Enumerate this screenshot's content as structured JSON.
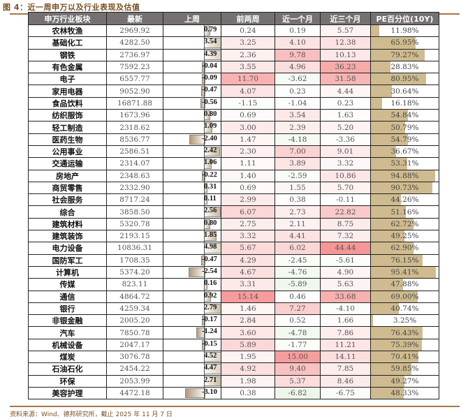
{
  "title": "图 4：近一周申万以及行业表现及估值",
  "footer": "资料来源：Wind、德邦研究所，截止 2025 年 11 月 7 日",
  "colors": {
    "header_bg": "#767171",
    "accent_rule": "#a5774e",
    "pe_bar": "#cfbb8f",
    "heat_red": "#f4a6a6",
    "heat_green": "#e2efda"
  },
  "table": {
    "headers": [
      "申万行业板块",
      "最新",
      "上周",
      "前两周",
      "近一个月",
      "近三个月",
      "PE百分位(10Y)"
    ],
    "rows": [
      {
        "name": "农林牧渔",
        "latest": "2969.92",
        "last_week": "0.79",
        "prev2": "0.24",
        "m1": "0.19",
        "m3": "5.57",
        "pe": "11.98%"
      },
      {
        "name": "基础化工",
        "latest": "4282.50",
        "last_week": "3.54",
        "prev2": "3.25",
        "m1": "4.10",
        "m3": "12.38",
        "pe": "65.95%"
      },
      {
        "name": "钢铁",
        "latest": "2736.97",
        "last_week": "4.39",
        "prev2": "2.36",
        "m1": "9.78",
        "m3": "10.13",
        "pe": "79.27%"
      },
      {
        "name": "有色金属",
        "latest": "7592.23",
        "last_week": "-0.04",
        "prev2": "3.55",
        "m1": "4.96",
        "m3": "36.23",
        "pe": "28.83%"
      },
      {
        "name": "电子",
        "latest": "6557.77",
        "last_week": "-0.09",
        "prev2": "11.70",
        "m1": "-3.62",
        "m3": "31.58",
        "pe": "80.95%"
      },
      {
        "name": "家用电器",
        "latest": "9052.90",
        "last_week": "-0.47",
        "prev2": "4.07",
        "m1": "0.23",
        "m3": "4.44",
        "pe": "30.64%"
      },
      {
        "name": "食品饮料",
        "latest": "16871.88",
        "last_week": "-0.56",
        "prev2": "-1.15",
        "m1": "-1.04",
        "m3": "0.23",
        "pe": "16.18%"
      },
      {
        "name": "纺织服饰",
        "latest": "1673.96",
        "last_week": "0.80",
        "prev2": "0.69",
        "m1": "3.54",
        "m3": "1.63",
        "pe": "54.84%"
      },
      {
        "name": "轻工制造",
        "latest": "2318.62",
        "last_week": "1.09",
        "prev2": "3.00",
        "m1": "2.39",
        "m3": "5.20",
        "pe": "50.79%"
      },
      {
        "name": "医药生物",
        "latest": "8536.77",
        "last_week": "-2.40",
        "prev2": "1.47",
        "m1": "-4.18",
        "m3": "-3.36",
        "pe": "54.79%"
      },
      {
        "name": "公用事业",
        "latest": "2586.51",
        "last_week": "2.42",
        "prev2": "2.30",
        "m1": "7.00",
        "m3": "9.01",
        "pe": "36.67%"
      },
      {
        "name": "交通运输",
        "latest": "2314.07",
        "last_week": "1.06",
        "prev2": "1.11",
        "m1": "3.89",
        "m3": "3.32",
        "pe": "53.31%"
      },
      {
        "name": "房地产",
        "latest": "2348.63",
        "last_week": "-0.22",
        "prev2": "1.40",
        "m1": "-2.59",
        "m3": "10.86",
        "pe": "94.88%"
      },
      {
        "name": "商贸零售",
        "latest": "2332.90",
        "last_week": "0.31",
        "prev2": "0.69",
        "m1": "1.55",
        "m3": "5.70",
        "pe": "90.73%"
      },
      {
        "name": "社会服务",
        "latest": "8717.24",
        "last_week": "0.11",
        "prev2": "2.99",
        "m1": "0.38",
        "m3": "-0.11",
        "pe": "44.26%"
      },
      {
        "name": "综合",
        "latest": "3858.50",
        "last_week": "2.56",
        "prev2": "6.07",
        "m1": "2.73",
        "m3": "22.82",
        "pe": "51.16%"
      },
      {
        "name": "建筑材料",
        "latest": "5320.78",
        "last_week": "0.80",
        "prev2": "2.75",
        "m1": "2.11",
        "m3": "8.75",
        "pe": "62.72%"
      },
      {
        "name": "建筑装饰",
        "latest": "2193.15",
        "last_week": "1.85",
        "prev2": "3.32",
        "m1": "4.41",
        "m3": "7.32",
        "pe": "49.25%"
      },
      {
        "name": "电力设备",
        "latest": "10836.31",
        "last_week": "4.98",
        "prev2": "5.67",
        "m1": "6.02",
        "m3": "44.44",
        "pe": "62.90%"
      },
      {
        "name": "国防军工",
        "latest": "1708.35",
        "last_week": "-0.47",
        "prev2": "4.29",
        "m1": "-2.45",
        "m3": "-5.61",
        "pe": "76.15%"
      },
      {
        "name": "计算机",
        "latest": "5374.20",
        "last_week": "-2.54",
        "prev2": "4.67",
        "m1": "-4.76",
        "m3": "4.90",
        "pe": "95.41%"
      },
      {
        "name": "传媒",
        "latest": "823.11",
        "last_week": "0.16",
        "prev2": "3.31",
        "m1": "-5.89",
        "m3": "5.63",
        "pe": "47.88%"
      },
      {
        "name": "通信",
        "latest": "4864.72",
        "last_week": "0.92",
        "prev2": "15.14",
        "m1": "0.46",
        "m3": "33.68",
        "pe": "69.00%"
      },
      {
        "name": "银行",
        "latest": "4259.34",
        "last_week": "2.79",
        "prev2": "1.46",
        "m1": "7.27",
        "m3": "-4.10",
        "pe": "40.74%"
      },
      {
        "name": "非银金融",
        "latest": "2005.20",
        "last_week": "-0.17",
        "prev2": "2.84",
        "m1": "0.52",
        "m3": "1.66",
        "pe": "3.25%"
      },
      {
        "name": "汽车",
        "latest": "7850.78",
        "last_week": "-1.24",
        "prev2": "3.60",
        "m1": "-4.78",
        "m3": "7.86",
        "pe": "76.43%"
      },
      {
        "name": "机械设备",
        "latest": "2047.17",
        "last_week": "-0.15",
        "prev2": "5.89",
        "m1": "-1.77",
        "m3": "11.21",
        "pe": "75.39%"
      },
      {
        "name": "煤炭",
        "latest": "3076.78",
        "last_week": "4.52",
        "prev2": "1.95",
        "m1": "15.00",
        "m3": "14.11",
        "pe": "70.41%"
      },
      {
        "name": "石油石化",
        "latest": "2454.22",
        "last_week": "4.47",
        "prev2": "4.92",
        "m1": "9.40",
        "m3": "7.85",
        "pe": "59.85%"
      },
      {
        "name": "环保",
        "latest": "2053.99",
        "last_week": "2.71",
        "prev2": "1.98",
        "m1": "5.37",
        "m3": "8.46",
        "pe": "49.27%"
      },
      {
        "name": "美容护理",
        "latest": "4472.18",
        "last_week": "-3.10",
        "prev2": "0.38",
        "m1": "-6.82",
        "m3": "-6.75",
        "pe": "48.33%"
      }
    ]
  }
}
